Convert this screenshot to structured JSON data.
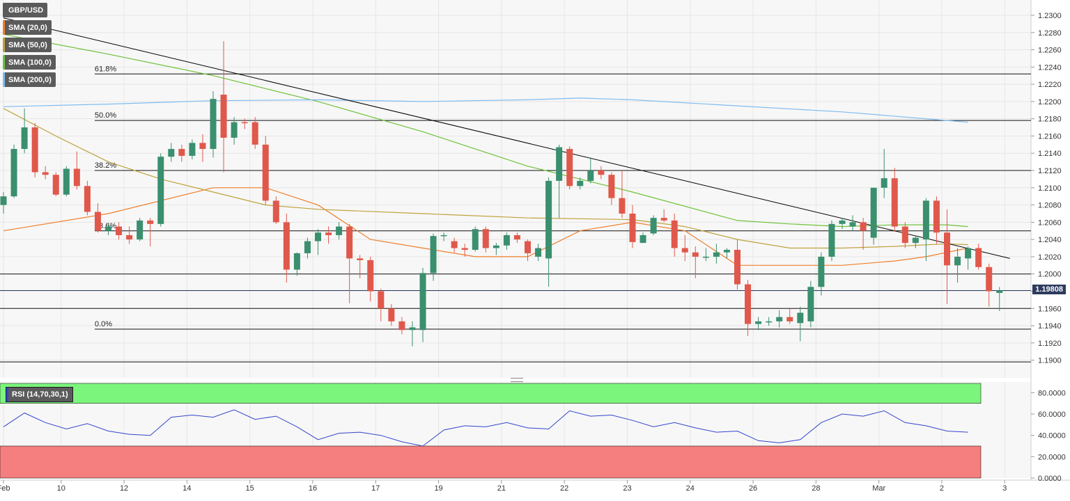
{
  "chart_data": {
    "type": "candlestick",
    "symbol": "GBP/USD",
    "current_price": "1.19808",
    "ylim": [
      1.189,
      1.2305
    ],
    "y_ticks": [
      "1.2300",
      "1.2280",
      "1.2260",
      "1.2240",
      "1.2220",
      "1.2200",
      "1.2180",
      "1.2160",
      "1.2140",
      "1.2120",
      "1.2100",
      "1.2080",
      "1.2060",
      "1.2040",
      "1.2020",
      "1.2000",
      "1.1980",
      "1.1960",
      "1.1940",
      "1.1920",
      "1.1900"
    ],
    "x_labels": [
      {
        "label": "Feb",
        "t": 0
      },
      {
        "label": "10",
        "t": 5.5
      },
      {
        "label": "12",
        "t": 11.5
      },
      {
        "label": "14",
        "t": 17.5
      },
      {
        "label": "15",
        "t": 23.5
      },
      {
        "label": "16",
        "t": 29.5
      },
      {
        "label": "17",
        "t": 35.5
      },
      {
        "label": "19",
        "t": 41.5
      },
      {
        "label": "21",
        "t": 47.5
      },
      {
        "label": "22",
        "t": 53.5
      },
      {
        "label": "23",
        "t": 59.5
      },
      {
        "label": "24",
        "t": 65.5
      },
      {
        "label": "26",
        "t": 71.5
      },
      {
        "label": "28",
        "t": 77.5
      },
      {
        "label": "Mar",
        "t": 83.5
      },
      {
        "label": "2",
        "t": 89.5
      },
      {
        "label": "3",
        "t": 95.5
      }
    ],
    "candles": [
      [
        1.208,
        1.2095,
        1.207,
        1.209
      ],
      [
        1.209,
        1.215,
        1.2088,
        1.2145
      ],
      [
        1.2145,
        1.2192,
        1.214,
        1.217
      ],
      [
        1.217,
        1.2175,
        1.2112,
        1.2118
      ],
      [
        1.2118,
        1.2125,
        1.211,
        1.2115
      ],
      [
        1.2115,
        1.2118,
        1.209,
        1.2092
      ],
      [
        1.2092,
        1.2125,
        1.209,
        1.2122
      ],
      [
        1.2122,
        1.2142,
        1.2098,
        1.2102
      ],
      [
        1.2102,
        1.2108,
        1.2068,
        1.2072
      ],
      [
        1.2072,
        1.2082,
        1.2048,
        1.205
      ],
      [
        1.205,
        1.2058,
        1.2045,
        1.2055
      ],
      [
        1.2055,
        1.206,
        1.204,
        1.2045
      ],
      [
        1.2045,
        1.2055,
        1.2035,
        1.204
      ],
      [
        1.204,
        1.2065,
        1.2038,
        1.2062
      ],
      [
        1.2062,
        1.2065,
        1.2032,
        1.2058
      ],
      [
        1.2058,
        1.214,
        1.2055,
        1.2136
      ],
      [
        1.2136,
        1.2152,
        1.213,
        1.2145
      ],
      [
        1.2145,
        1.215,
        1.213,
        1.2137
      ],
      [
        1.2137,
        1.2156,
        1.2133,
        1.2152
      ],
      [
        1.2152,
        1.2162,
        1.213,
        1.2145
      ],
      [
        1.2145,
        1.2212,
        1.2135,
        1.2203
      ],
      [
        1.2208,
        1.227,
        1.2118,
        1.2158
      ],
      [
        1.2158,
        1.2182,
        1.215,
        1.2176
      ],
      [
        1.2176,
        1.218,
        1.2168,
        1.2175
      ],
      [
        1.2176,
        1.2182,
        1.2145,
        1.215
      ],
      [
        1.215,
        1.216,
        1.208,
        1.2085
      ],
      [
        1.2085,
        1.209,
        1.2058,
        1.206
      ],
      [
        1.206,
        1.207,
        1.199,
        1.2005
      ],
      [
        1.2005,
        1.2025,
        1.1998,
        1.2024
      ],
      [
        1.2024,
        1.2042,
        1.2018,
        1.2038
      ],
      [
        1.2038,
        1.2052,
        1.2022,
        1.2048
      ],
      [
        1.2048,
        1.2055,
        1.2035,
        1.2045
      ],
      [
        1.2045,
        1.206,
        1.204,
        1.2055
      ],
      [
        1.2055,
        1.2058,
        1.1966,
        1.2018
      ],
      [
        1.2018,
        1.2022,
        1.1995,
        1.2016
      ],
      [
        1.2016,
        1.202,
        1.1968,
        1.198
      ],
      [
        1.198,
        1.1983,
        1.1945,
        1.196
      ],
      [
        1.196,
        1.1965,
        1.194,
        1.1945
      ],
      [
        1.1945,
        1.195,
        1.193,
        1.1935
      ],
      [
        1.1935,
        1.1945,
        1.1916,
        1.1938
      ],
      [
        1.1935,
        1.2007,
        1.1921,
        1.2001
      ],
      [
        1.2001,
        1.2047,
        1.1992,
        1.2044
      ],
      [
        1.2044,
        1.2048,
        1.2038,
        1.2045
      ],
      [
        1.2038,
        1.2042,
        1.2025,
        1.203
      ],
      [
        1.203,
        1.2035,
        1.202,
        1.2028
      ],
      [
        1.2028,
        1.2055,
        1.2026,
        1.2052
      ],
      [
        1.2052,
        1.2055,
        1.2025,
        1.203
      ],
      [
        1.203,
        1.2036,
        1.2022,
        1.2033
      ],
      [
        1.2033,
        1.2048,
        1.2028,
        1.2045
      ],
      [
        1.2045,
        1.2048,
        1.2036,
        1.204
      ],
      [
        1.2038,
        1.204,
        1.2015,
        1.2024
      ],
      [
        1.202,
        1.2035,
        1.2015,
        1.203
      ],
      [
        1.2018,
        1.2112,
        1.1985,
        1.2108
      ],
      [
        1.2108,
        1.215,
        1.2065,
        1.2147
      ],
      [
        1.2145,
        1.2148,
        1.2098,
        1.2102
      ],
      [
        1.2102,
        1.2112,
        1.2098,
        1.2108
      ],
      [
        1.2108,
        1.2135,
        1.2105,
        1.212
      ],
      [
        1.212,
        1.2125,
        1.211,
        1.2115
      ],
      [
        1.2115,
        1.2118,
        1.208,
        1.2088
      ],
      [
        1.2088,
        1.212,
        1.2065,
        1.207
      ],
      [
        1.207,
        1.208,
        1.203,
        1.2037
      ],
      [
        1.2036,
        1.2048,
        1.2036,
        1.2045
      ],
      [
        1.2047,
        1.2068,
        1.2045,
        1.2065
      ],
      [
        1.2065,
        1.2075,
        1.206,
        1.2062
      ],
      [
        1.2062,
        1.207,
        1.202,
        1.203
      ],
      [
        1.203,
        1.2045,
        1.2015,
        1.2025
      ],
      [
        1.2025,
        1.2032,
        1.1995,
        1.202
      ],
      [
        1.202,
        1.203,
        1.2015,
        1.202
      ],
      [
        1.202,
        1.2035,
        1.2012,
        1.2025
      ],
      [
        1.2025,
        1.203,
        1.2018,
        1.2028
      ],
      [
        1.2028,
        1.204,
        1.1982,
        1.1988
      ],
      [
        1.1988,
        1.1993,
        1.1928,
        1.1942
      ],
      [
        1.1942,
        1.195,
        1.1935,
        1.1945
      ],
      [
        1.1945,
        1.195,
        1.194,
        1.1945
      ],
      [
        1.1945,
        1.1958,
        1.1938,
        1.195
      ],
      [
        1.195,
        1.196,
        1.1942,
        1.1945
      ],
      [
        1.1943,
        1.1962,
        1.1922,
        1.1955
      ],
      [
        1.1945,
        1.1992,
        1.1938,
        1.1985
      ],
      [
        1.1985,
        1.2025,
        1.1975,
        1.202
      ],
      [
        1.202,
        1.2062,
        1.2015,
        1.2058
      ],
      [
        1.2058,
        1.2065,
        1.2052,
        1.2062
      ],
      [
        1.2055,
        1.2068,
        1.205,
        1.206
      ],
      [
        1.206,
        1.2065,
        1.2028,
        1.205
      ],
      [
        1.2042,
        1.21,
        1.2034,
        1.21
      ],
      [
        1.21,
        1.2145,
        1.2088,
        1.2111
      ],
      [
        1.2111,
        1.2123,
        1.2049,
        1.2055
      ],
      [
        1.2055,
        1.206,
        1.203,
        1.2036
      ],
      [
        1.2036,
        1.2045,
        1.203,
        1.2042
      ],
      [
        1.204,
        1.2088,
        1.2015,
        1.2085
      ],
      [
        1.2085,
        1.209,
        1.2035,
        1.2048
      ],
      [
        1.2048,
        1.2075,
        1.1965,
        1.201
      ],
      [
        1.201,
        1.203,
        1.199,
        1.202
      ],
      [
        1.2018,
        1.2032,
        1.2005,
        1.203
      ],
      [
        1.203,
        1.2035,
        1.2005,
        1.2008
      ],
      [
        1.2008,
        1.2012,
        1.1962,
        1.198
      ],
      [
        1.1978,
        1.1985,
        1.1957,
        1.1981
      ]
    ],
    "sma": [
      {
        "name": "SMA (20,0)",
        "color": "#f07f2b",
        "t": [
          0,
          10,
          20,
          25,
          30,
          35,
          40,
          45,
          50,
          55,
          60,
          65,
          70,
          75,
          80,
          85,
          88,
          92
        ],
        "v": [
          1.205,
          1.207,
          1.21,
          1.21,
          1.208,
          1.204,
          1.203,
          1.202,
          1.202,
          1.205,
          1.206,
          1.205,
          1.201,
          1.201,
          1.201,
          1.2015,
          1.202,
          1.203
        ]
      },
      {
        "name": "SMA (50,0)",
        "color": "#bfa23c",
        "t": [
          0,
          5,
          10,
          15,
          20,
          25,
          30,
          40,
          50,
          60,
          65,
          70,
          75,
          80,
          85,
          90,
          92
        ],
        "v": [
          1.2192,
          1.216,
          1.213,
          1.211,
          1.2095,
          1.208,
          1.2075,
          1.207,
          1.2065,
          1.2063,
          1.2055,
          1.204,
          1.203,
          1.203,
          1.2032,
          1.2035,
          1.2034
        ]
      },
      {
        "name": "SMA (100,0)",
        "color": "#6ec23a",
        "t": [
          0,
          10,
          20,
          30,
          40,
          50,
          60,
          70,
          75,
          80,
          85,
          90,
          92
        ],
        "v": [
          1.2278,
          1.2255,
          1.223,
          1.22,
          1.2165,
          1.2125,
          1.2095,
          1.2062,
          1.2058,
          1.2055,
          1.2057,
          1.2057,
          1.2055
        ]
      },
      {
        "name": "SMA (200,0)",
        "color": "#7ebcf0",
        "t": [
          0,
          10,
          20,
          30,
          40,
          50,
          55,
          60,
          70,
          80,
          92
        ],
        "v": [
          1.2194,
          1.2197,
          1.2201,
          1.2202,
          1.22,
          1.2202,
          1.2204,
          1.2202,
          1.2195,
          1.2188,
          1.2176
        ]
      }
    ],
    "trendline": {
      "t": [
        0,
        96
      ],
      "v": [
        1.2297,
        1.2018
      ]
    },
    "fib_levels": [
      {
        "label": "61.8%",
        "value": 1.2232
      },
      {
        "label": "50.0%",
        "value": 1.2178
      },
      {
        "label": "38.2%",
        "value": 1.212
      },
      {
        "label": "23.6%",
        "value": 1.205
      },
      {
        "label": "0.0%",
        "value": 1.1936
      }
    ],
    "hlines": [
      1.2,
      1.196,
      1.1898
    ],
    "rsi": {
      "label": "RSI (14,70,30,1)",
      "ylim": [
        0,
        90
      ],
      "y_ticks": [
        "80.0000",
        "60.0000",
        "40.0000",
        "20.0000",
        "0.0000"
      ],
      "overbought": 70,
      "oversold": 30,
      "t": [
        0,
        2,
        4,
        6,
        8,
        10,
        12,
        14,
        16,
        18,
        20,
        22,
        24,
        26,
        28,
        30,
        32,
        34,
        36,
        38,
        40,
        42,
        44,
        46,
        48,
        50,
        52,
        54,
        56,
        58,
        60,
        62,
        64,
        66,
        68,
        70,
        72,
        74,
        76,
        78,
        80,
        82,
        84,
        86,
        88,
        90,
        92
      ],
      "v": [
        48,
        61,
        52,
        46,
        51,
        44,
        41,
        40,
        57,
        59,
        57,
        64,
        55,
        58,
        48,
        36,
        42,
        43,
        40,
        34,
        30,
        45,
        49,
        48,
        52,
        47,
        46,
        63,
        58,
        59,
        54,
        48,
        52,
        47,
        43,
        44,
        35,
        33,
        36,
        52,
        60,
        58,
        63,
        52,
        49,
        44,
        43
      ]
    }
  },
  "legend": [
    {
      "label": "GBP/USD",
      "color": "#5b5b5b"
    },
    {
      "label": "SMA (20,0)",
      "color": "#f07f2b"
    },
    {
      "label": "SMA (50,0)",
      "color": "#bfa23c"
    },
    {
      "label": "SMA (100,0)",
      "color": "#6ec23a"
    },
    {
      "label": "SMA (200,0)",
      "color": "#7ebcf0"
    }
  ],
  "colors": {
    "bull": "#3a8f6e",
    "bear": "#e0584b",
    "grid": "#e6e6e6",
    "trend": "#000000",
    "level": "#111111",
    "rsi": "#3344cc",
    "ob": "#7cf57c",
    "os": "#f57e7e"
  }
}
